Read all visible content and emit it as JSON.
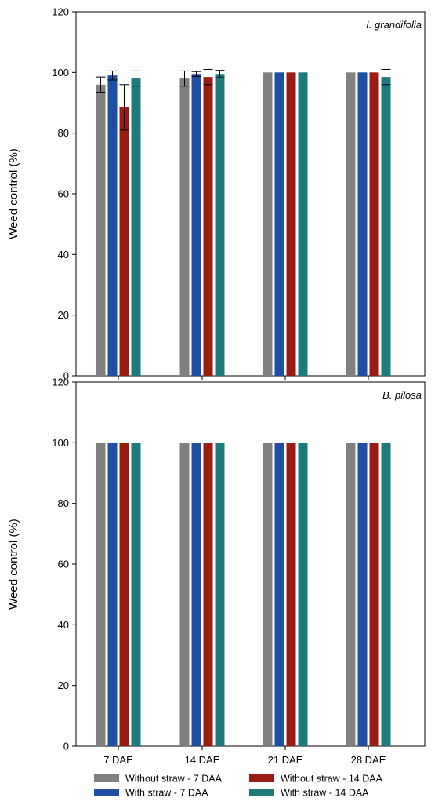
{
  "chart_data": [
    {
      "type": "bar",
      "panel_label": "I. grandifolia",
      "ylabel": "Weed control (%)",
      "xlabel": "",
      "ylim": [
        0,
        120
      ],
      "yticks": [
        0,
        20,
        40,
        60,
        80,
        100,
        120
      ],
      "categories": [
        "7 DAE",
        "14 DAE",
        "21 DAE",
        "28 DAE"
      ],
      "series": [
        {
          "name": "Without straw - 7 DAA",
          "color": "#808080",
          "values": [
            96,
            98,
            100,
            100
          ],
          "errors": [
            2.5,
            2.5,
            0,
            0
          ]
        },
        {
          "name": "With straw - 7 DAA",
          "color": "#1f4ea3",
          "values": [
            99,
            99.5,
            100,
            100
          ],
          "errors": [
            1.5,
            0.8,
            0,
            0
          ]
        },
        {
          "name": "Without straw - 14 DAA",
          "color": "#9b1c12",
          "values": [
            88.5,
            98.5,
            100,
            100
          ],
          "errors": [
            7.5,
            2.5,
            0,
            0
          ]
        },
        {
          "name": "With straw - 14 DAA",
          "color": "#1f7a7c",
          "values": [
            98,
            99.5,
            100,
            98.5
          ],
          "errors": [
            2.5,
            1.2,
            0,
            2.5
          ]
        }
      ]
    },
    {
      "type": "bar",
      "panel_label": "B. pilosa",
      "ylabel": "Weed control (%)",
      "xlabel": "",
      "ylim": [
        0,
        120
      ],
      "yticks": [
        0,
        20,
        40,
        60,
        80,
        100,
        120
      ],
      "categories": [
        "7 DAE",
        "14 DAE",
        "21 DAE",
        "28 DAE"
      ],
      "series": [
        {
          "name": "Without straw - 7 DAA",
          "color": "#808080",
          "values": [
            100,
            100,
            100,
            100
          ],
          "errors": [
            0,
            0,
            0,
            0
          ]
        },
        {
          "name": "With straw - 7 DAA",
          "color": "#1f4ea3",
          "values": [
            100,
            100,
            100,
            100
          ],
          "errors": [
            0,
            0,
            0,
            0
          ]
        },
        {
          "name": "Without straw - 14 DAA",
          "color": "#9b1c12",
          "values": [
            100,
            100,
            100,
            100
          ],
          "errors": [
            0,
            0,
            0,
            0
          ]
        },
        {
          "name": "With straw - 14 DAA",
          "color": "#1f7a7c",
          "values": [
            100,
            100,
            100,
            100
          ],
          "errors": [
            0,
            0,
            0,
            0
          ]
        }
      ]
    }
  ],
  "legend": [
    {
      "label": "Without straw - 7 DAA",
      "color": "#808080"
    },
    {
      "label": "Without straw - 14 DAA",
      "color": "#9b1c12"
    },
    {
      "label": "With straw - 7 DAA",
      "color": "#1f4ea3"
    },
    {
      "label": "With straw - 14 DAA",
      "color": "#1f7a7c"
    }
  ]
}
